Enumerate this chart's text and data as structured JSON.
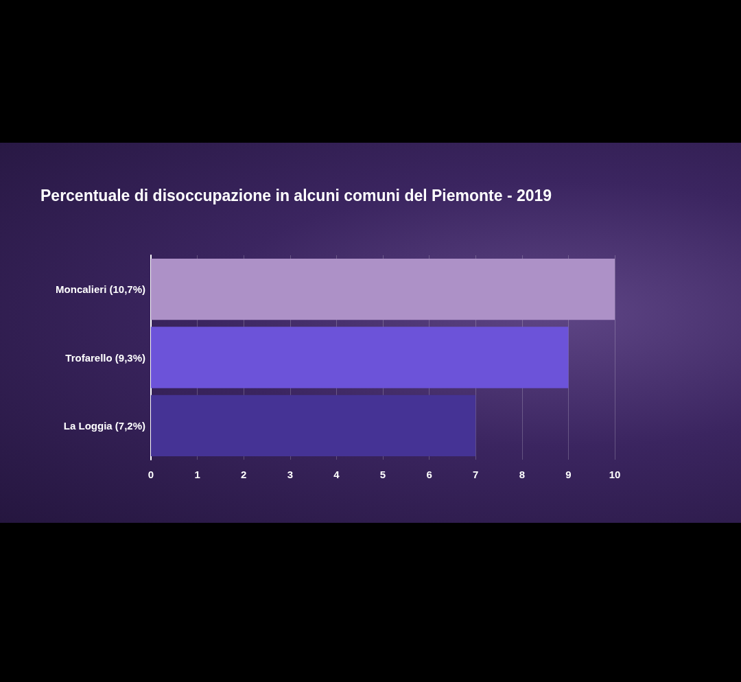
{
  "chart_data": {
    "type": "bar",
    "orientation": "horizontal",
    "title": "Percentuale di disoccupazione in alcuni comuni del Piemonte - 2019",
    "categories": [
      "Moncalieri (10,7%)",
      "Trofarello (9,3%)",
      "La Loggia (7,2%)"
    ],
    "values": [
      10,
      9,
      7
    ],
    "colors": [
      "#ad91c7",
      "#6c53d9",
      "#453395"
    ],
    "xlim": [
      0,
      10
    ],
    "xticks": [
      0,
      1,
      2,
      3,
      4,
      5,
      6,
      7,
      8,
      9,
      10
    ],
    "grid": "x"
  }
}
